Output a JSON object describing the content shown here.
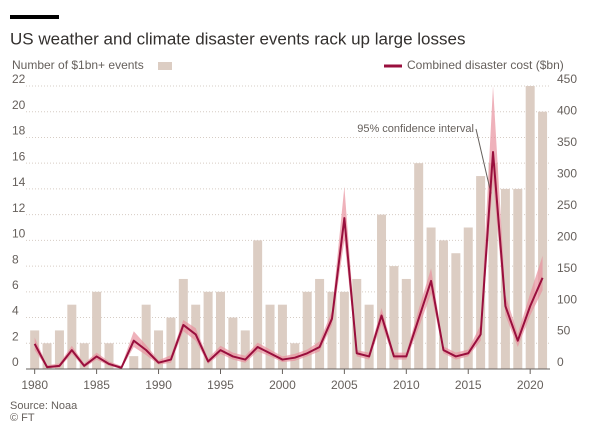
{
  "chart_data": {
    "type": "combo",
    "title": "US weather and climate disaster events rack up large losses",
    "x": [
      1980,
      1981,
      1982,
      1983,
      1984,
      1985,
      1986,
      1987,
      1988,
      1989,
      1990,
      1991,
      1992,
      1993,
      1994,
      1995,
      1996,
      1997,
      1998,
      1999,
      2000,
      2001,
      2002,
      2003,
      2004,
      2005,
      2006,
      2007,
      2008,
      2009,
      2010,
      2011,
      2012,
      2013,
      2014,
      2015,
      2016,
      2017,
      2018,
      2019,
      2020,
      2021
    ],
    "xlim": [
      1979.3,
      2021.6
    ],
    "xticks": [
      1980,
      1985,
      1990,
      1995,
      2000,
      2005,
      2010,
      2015,
      2020
    ],
    "ylim": [
      0,
      22
    ],
    "yticks": [
      0,
      2,
      4,
      6,
      8,
      10,
      12,
      14,
      16,
      18,
      20,
      22
    ],
    "y2lim": [
      0,
      450
    ],
    "y2ticks": [
      0,
      50,
      100,
      150,
      200,
      250,
      300,
      350,
      400,
      450
    ],
    "grid": true,
    "series": [
      {
        "name": "Number of $1bn+ events",
        "type": "bar",
        "color": "#dccdc3",
        "values": [
          3,
          2,
          3,
          5,
          2,
          6,
          2,
          0,
          1,
          5,
          3,
          4,
          7,
          5,
          6,
          6,
          4,
          3,
          10,
          5,
          5,
          2,
          6,
          7,
          6,
          6,
          7,
          5,
          12,
          8,
          7,
          16,
          11,
          10,
          9,
          11,
          15,
          16,
          14,
          14,
          22,
          20
        ]
      },
      {
        "name": "Combined disaster cost ($bn)",
        "type": "line",
        "axis": "y2",
        "color": "#990f3d",
        "values": [
          40,
          3,
          5,
          30,
          5,
          20,
          8,
          2,
          45,
          30,
          10,
          15,
          70,
          55,
          12,
          30,
          20,
          15,
          35,
          25,
          15,
          18,
          25,
          35,
          80,
          240,
          25,
          20,
          85,
          20,
          20,
          80,
          140,
          30,
          20,
          25,
          55,
          345,
          100,
          45,
          100,
          145
        ]
      }
    ],
    "confidence_interval": {
      "label": "95% confidence interval",
      "color": "#e8929e",
      "low": [
        30,
        1,
        2,
        24,
        2,
        15,
        5,
        0,
        35,
        22,
        7,
        10,
        60,
        45,
        8,
        24,
        15,
        10,
        28,
        20,
        11,
        13,
        20,
        28,
        70,
        205,
        20,
        15,
        72,
        15,
        15,
        65,
        120,
        25,
        15,
        20,
        45,
        300,
        85,
        35,
        85,
        125
      ],
      "high": [
        50,
        6,
        9,
        37,
        9,
        26,
        12,
        5,
        60,
        38,
        14,
        22,
        78,
        65,
        17,
        37,
        26,
        21,
        42,
        31,
        20,
        24,
        31,
        44,
        92,
        290,
        30,
        26,
        97,
        26,
        26,
        95,
        160,
        36,
        26,
        31,
        70,
        450,
        118,
        56,
        120,
        180
      ]
    },
    "source": "Source: Noaa",
    "copyright": "© FT"
  }
}
